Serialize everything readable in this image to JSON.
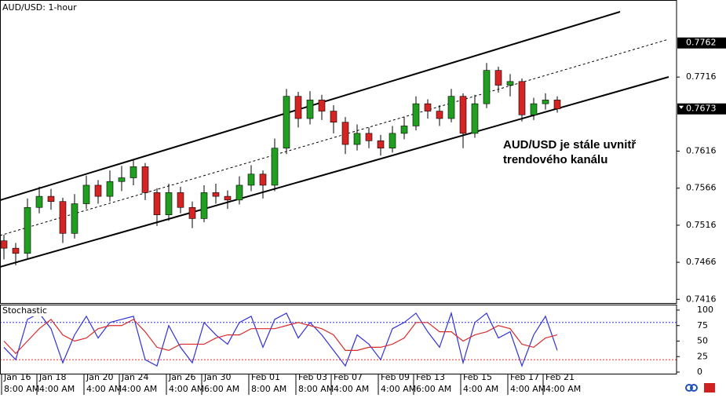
{
  "chart_data": {
    "type": "candlestick",
    "title": "AUD/USD: 1-hour",
    "annotation": [
      "AUD/USD je stále uvnitř",
      "trendového kanálu"
    ],
    "categories": [
      "Jan 16",
      null,
      null,
      "Jan 18",
      null,
      null,
      null,
      "Jan 20",
      null,
      null,
      "Jan 24",
      null,
      null,
      null,
      "Jan 26",
      null,
      null,
      "Jan 30",
      null,
      null,
      null,
      "Feb 01",
      null,
      null,
      null,
      "Feb 03",
      null,
      null,
      "Feb 07",
      null,
      null,
      null,
      "Feb 09",
      null,
      null,
      "Feb 13",
      null,
      null,
      null,
      "Feb 15",
      null,
      null,
      null,
      "Feb 17",
      null,
      null,
      "Feb 21",
      null
    ],
    "category_times": [
      "8:00 AM",
      null,
      null,
      "4:00 AM",
      null,
      null,
      null,
      "4:00 AM",
      null,
      null,
      "4:00 AM",
      null,
      null,
      null,
      "4:00 AM",
      null,
      null,
      "6:00 AM",
      null,
      null,
      null,
      "8:00 AM",
      null,
      null,
      null,
      "8:00 AM",
      null,
      null,
      "4:00 AM",
      null,
      null,
      null,
      "4:00 AM",
      null,
      null,
      "6:00 AM",
      null,
      null,
      null,
      "4:00 AM",
      null,
      null,
      null,
      "4:00 AM",
      null,
      null,
      "4:00 AM",
      null
    ],
    "candles": {
      "open": [
        0.7495,
        0.7485,
        0.7478,
        0.754,
        0.7555,
        0.7548,
        0.7505,
        0.7545,
        0.757,
        0.7555,
        0.7575,
        0.758,
        0.7595,
        0.756,
        0.753,
        0.756,
        0.754,
        0.7525,
        0.756,
        0.7555,
        0.755,
        0.757,
        0.7585,
        0.757,
        0.762,
        0.769,
        0.766,
        0.7685,
        0.767,
        0.7655,
        0.7625,
        0.764,
        0.763,
        0.762,
        0.764,
        0.765,
        0.768,
        0.767,
        0.766,
        0.769,
        0.764,
        0.768,
        0.7725,
        0.7705,
        0.771,
        0.7665,
        0.768,
        0.7685
      ],
      "high": [
        0.7503,
        0.7492,
        0.7552,
        0.7568,
        0.7565,
        0.7553,
        0.7558,
        0.7583,
        0.7577,
        0.759,
        0.7596,
        0.7605,
        0.76,
        0.7566,
        0.7572,
        0.7568,
        0.7548,
        0.757,
        0.7572,
        0.7563,
        0.7582,
        0.7597,
        0.759,
        0.7633,
        0.77,
        0.7696,
        0.7697,
        0.7692,
        0.7678,
        0.7662,
        0.7652,
        0.7648,
        0.7638,
        0.765,
        0.7662,
        0.769,
        0.7686,
        0.7678,
        0.77,
        0.7694,
        0.7692,
        0.7735,
        0.773,
        0.772,
        0.7714,
        0.7688,
        0.7694,
        0.769
      ],
      "low": [
        0.747,
        0.7462,
        0.747,
        0.7532,
        0.7537,
        0.7492,
        0.7498,
        0.7538,
        0.7545,
        0.7548,
        0.7562,
        0.757,
        0.755,
        0.7515,
        0.7522,
        0.7532,
        0.7512,
        0.752,
        0.7545,
        0.7538,
        0.7544,
        0.7562,
        0.7552,
        0.7562,
        0.7612,
        0.7648,
        0.7652,
        0.7658,
        0.764,
        0.7612,
        0.7617,
        0.762,
        0.761,
        0.7614,
        0.7632,
        0.7644,
        0.766,
        0.765,
        0.7655,
        0.762,
        0.7634,
        0.7674,
        0.7695,
        0.769,
        0.7656,
        0.7658,
        0.7672,
        0.7668
      ],
      "close": [
        0.7485,
        0.7478,
        0.754,
        0.7555,
        0.7548,
        0.7505,
        0.7545,
        0.757,
        0.7555,
        0.7575,
        0.758,
        0.7595,
        0.756,
        0.753,
        0.756,
        0.754,
        0.7525,
        0.756,
        0.7555,
        0.755,
        0.757,
        0.7585,
        0.757,
        0.762,
        0.769,
        0.766,
        0.7685,
        0.767,
        0.7655,
        0.7625,
        0.764,
        0.763,
        0.762,
        0.764,
        0.765,
        0.768,
        0.767,
        0.766,
        0.769,
        0.764,
        0.768,
        0.7725,
        0.7705,
        0.771,
        0.7665,
        0.768,
        0.7685,
        0.7673
      ],
      "up_color": "#1f9e1f",
      "down_color": "#d42424"
    },
    "ylim": [
      0.7411,
      0.782
    ],
    "yticks": [
      0.7416,
      0.7466,
      0.7516,
      0.7566,
      0.7616,
      0.7716
    ],
    "line_level": 0.7762,
    "last_price": 0.7673,
    "stochastic": {
      "title": "Stochastic",
      "ylim": [
        0,
        100
      ],
      "yticks": [
        0,
        25,
        50,
        75,
        100
      ],
      "levels": [
        {
          "value": 20,
          "color": "#e03030"
        },
        {
          "value": 80,
          "color": "#3030e0"
        }
      ],
      "series": [
        {
          "color": "#3232d8",
          "values": [
            40,
            20,
            85,
            95,
            70,
            15,
            60,
            90,
            55,
            80,
            85,
            90,
            20,
            10,
            75,
            40,
            15,
            80,
            60,
            45,
            80,
            90,
            40,
            85,
            95,
            55,
            80,
            60,
            35,
            10,
            60,
            45,
            20,
            70,
            80,
            95,
            65,
            40,
            95,
            15,
            80,
            95,
            55,
            65,
            10,
            60,
            90,
            35
          ]
        },
        {
          "color": "#d82c2c",
          "values": [
            50,
            30,
            50,
            70,
            85,
            60,
            50,
            55,
            70,
            75,
            75,
            85,
            65,
            40,
            35,
            45,
            45,
            45,
            55,
            60,
            60,
            70,
            70,
            70,
            75,
            80,
            75,
            70,
            60,
            35,
            35,
            40,
            40,
            45,
            55,
            80,
            80,
            65,
            65,
            50,
            60,
            65,
            75,
            70,
            45,
            40,
            55,
            60
          ]
        }
      ]
    }
  }
}
